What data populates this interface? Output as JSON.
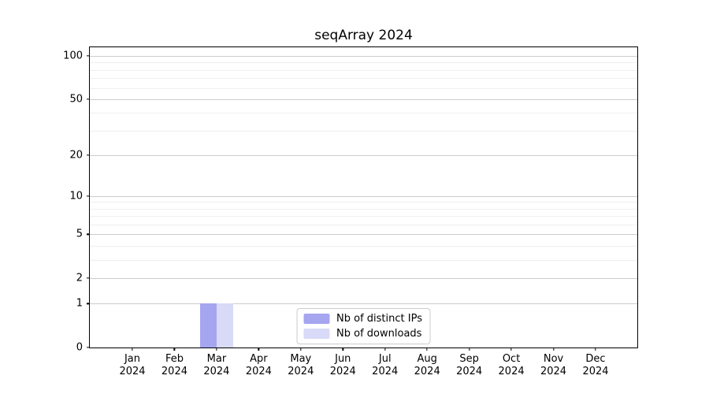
{
  "figure": {
    "background": "#ffffff"
  },
  "chart_data": {
    "type": "bar",
    "title": "seqArray 2024",
    "categories": [
      "Jan",
      "Feb",
      "Mar",
      "Apr",
      "May",
      "Jun",
      "Jul",
      "Aug",
      "Sep",
      "Oct",
      "Nov",
      "Dec"
    ],
    "xtick_year": "2024",
    "series": [
      {
        "name": "Nb of distinct IPs",
        "color": "#a5a5f0",
        "values": [
          0,
          0,
          1,
          0,
          0,
          0,
          0,
          0,
          0,
          0,
          0,
          0
        ]
      },
      {
        "name": "Nb of downloads",
        "color": "#d9d9f8",
        "values": [
          0,
          0,
          1,
          0,
          0,
          0,
          0,
          0,
          0,
          0,
          0,
          0
        ]
      }
    ],
    "xlabel": "",
    "ylabel": "",
    "yscale": "log1p",
    "yticks": [
      0,
      1,
      2,
      5,
      10,
      20,
      50,
      100
    ],
    "minor_yticks": [
      3,
      4,
      6,
      7,
      8,
      9,
      30,
      40,
      60,
      70,
      80,
      90
    ],
    "ylim": [
      0,
      115
    ],
    "grid": "horizontal",
    "legend_position": "lower center",
    "colors": {
      "axis": "#000000",
      "grid_major": "#cccccc",
      "grid_minor": "#efefef",
      "legend_border": "#cccccc",
      "text": "#000000"
    }
  }
}
